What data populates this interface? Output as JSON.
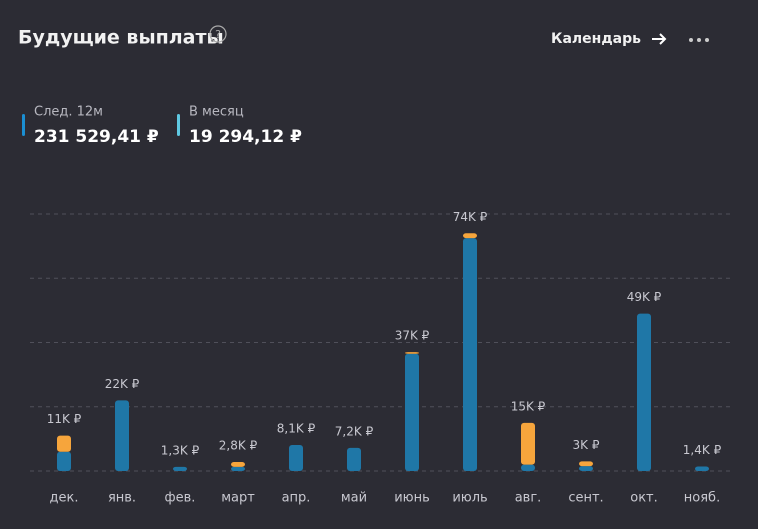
{
  "header": {
    "title": "Будущие выплаты",
    "help": "?",
    "calendar": "Календарь"
  },
  "stats": [
    {
      "label": "След. 12м",
      "value": "231 529,41 ₽",
      "color": "#1b8fd2"
    },
    {
      "label": "В месяц",
      "value": "19 294,12 ₽",
      "color": "#5fc9e2"
    }
  ],
  "chart_data": {
    "type": "bar",
    "stacked": true,
    "categories": [
      "дек.",
      "янв.",
      "фев.",
      "март",
      "апр.",
      "май",
      "июнь",
      "июль",
      "авг.",
      "сент.",
      "окт.",
      "нояб."
    ],
    "series": [
      {
        "color": "#1f77a7",
        "values": [
          6000,
          22000,
          1300,
          1300,
          8100,
          7200,
          36500,
          72500,
          2000,
          1500,
          49000,
          1400
        ]
      },
      {
        "color": "#f6a53c",
        "values": [
          5000,
          0,
          0,
          1500,
          0,
          0,
          500,
          1500,
          13000,
          1500,
          0,
          0
        ]
      }
    ],
    "totals": {
      "values": [
        11000,
        22000,
        1300,
        2800,
        8100,
        7200,
        37000,
        74000,
        15000,
        3000,
        49000,
        1400
      ],
      "value_labels": [
        "11K ₽",
        "22K ₽",
        "1,3K ₽",
        "2,8K ₽",
        "8,1K ₽",
        "7,2K ₽",
        "37K ₽",
        "74K ₽",
        "15K ₽",
        "3K ₽",
        "49K ₽",
        "1,4K ₽"
      ]
    },
    "ylim": [
      0,
      80000
    ],
    "yticks": [
      0,
      20000,
      40000,
      60000,
      80000
    ],
    "grid": true
  }
}
